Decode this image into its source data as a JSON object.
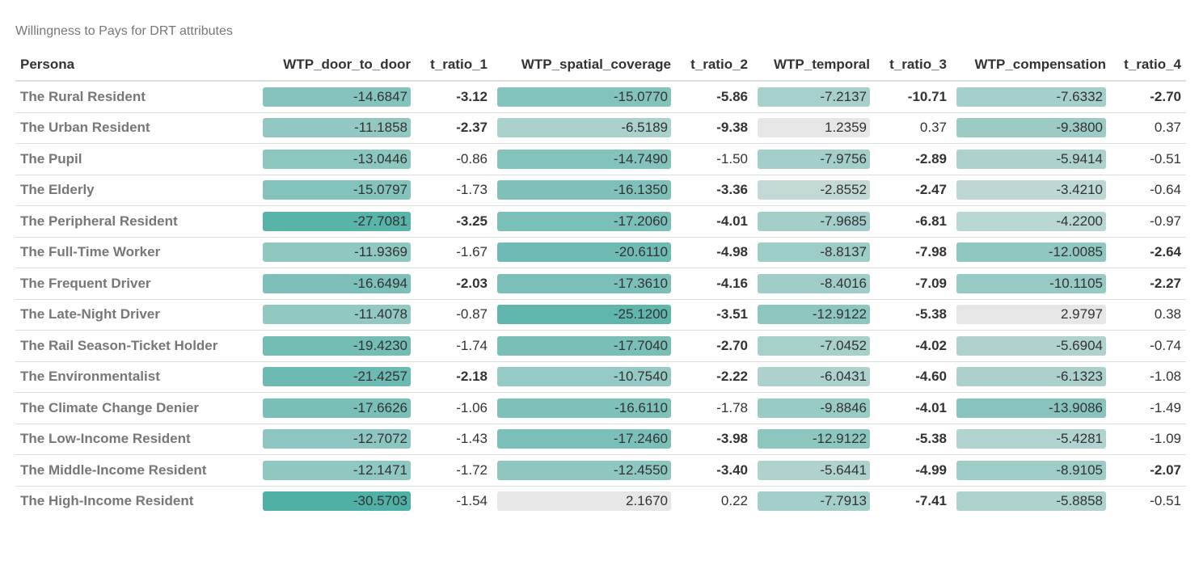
{
  "caption": "Willingness to Pays for DRT attributes",
  "columns": [
    "Persona",
    "WTP_door_to_door",
    "t_ratio_1",
    "WTP_spatial_coverage",
    "t_ratio_2",
    "WTP_temporal",
    "t_ratio_3",
    "WTP_compensation",
    "t_ratio_4"
  ],
  "colors": {
    "bar_min": "#e6e6e6",
    "bar_max": "#4fb0a5",
    "header_text": "#333333",
    "persona_text": "#777777",
    "caption_text": "#777777",
    "row_border": "#dddddd"
  },
  "rows": [
    {
      "persona": "The Rural Resident",
      "wtp_door": "-14.6847",
      "t1": "-3.12",
      "wtp_spatial": "-15.0770",
      "t2": "-5.86",
      "wtp_temporal": "-7.2137",
      "t3": "-10.71",
      "wtp_comp": "-7.6332",
      "t4": "-2.70"
    },
    {
      "persona": "The Urban Resident",
      "wtp_door": "-11.1858",
      "t1": "-2.37",
      "wtp_spatial": "-6.5189",
      "t2": "-9.38",
      "wtp_temporal": "1.2359",
      "t3": "0.37",
      "wtp_comp": "-9.3800",
      "t4": "0.37"
    },
    {
      "persona": "The Pupil",
      "wtp_door": "-13.0446",
      "t1": "-0.86",
      "wtp_spatial": "-14.7490",
      "t2": "-1.50",
      "wtp_temporal": "-7.9756",
      "t3": "-2.89",
      "wtp_comp": "-5.9414",
      "t4": "-0.51"
    },
    {
      "persona": "The Elderly",
      "wtp_door": "-15.0797",
      "t1": "-1.73",
      "wtp_spatial": "-16.1350",
      "t2": "-3.36",
      "wtp_temporal": "-2.8552",
      "t3": "-2.47",
      "wtp_comp": "-3.4210",
      "t4": "-0.64"
    },
    {
      "persona": "The Peripheral Resident",
      "wtp_door": "-27.7081",
      "t1": "-3.25",
      "wtp_spatial": "-17.2060",
      "t2": "-4.01",
      "wtp_temporal": "-7.9685",
      "t3": "-6.81",
      "wtp_comp": "-4.2200",
      "t4": "-0.97"
    },
    {
      "persona": "The Full-Time Worker",
      "wtp_door": "-11.9369",
      "t1": "-1.67",
      "wtp_spatial": "-20.6110",
      "t2": "-4.98",
      "wtp_temporal": "-8.8137",
      "t3": "-7.98",
      "wtp_comp": "-12.0085",
      "t4": "-2.64"
    },
    {
      "persona": "The Frequent Driver",
      "wtp_door": "-16.6494",
      "t1": "-2.03",
      "wtp_spatial": "-17.3610",
      "t2": "-4.16",
      "wtp_temporal": "-8.4016",
      "t3": "-7.09",
      "wtp_comp": "-10.1105",
      "t4": "-2.27"
    },
    {
      "persona": "The Late-Night Driver",
      "wtp_door": "-11.4078",
      "t1": "-0.87",
      "wtp_spatial": "-25.1200",
      "t2": "-3.51",
      "wtp_temporal": "-12.9122",
      "t3": "-5.38",
      "wtp_comp": "2.9797",
      "t4": "0.38"
    },
    {
      "persona": "The Rail Season-Ticket Holder",
      "wtp_door": "-19.4230",
      "t1": "-1.74",
      "wtp_spatial": "-17.7040",
      "t2": "-2.70",
      "wtp_temporal": "-7.0452",
      "t3": "-4.02",
      "wtp_comp": "-5.6904",
      "t4": "-0.74"
    },
    {
      "persona": "The Environmentalist",
      "wtp_door": "-21.4257",
      "t1": "-2.18",
      "wtp_spatial": "-10.7540",
      "t2": "-2.22",
      "wtp_temporal": "-6.0431",
      "t3": "-4.60",
      "wtp_comp": "-6.1323",
      "t4": "-1.08"
    },
    {
      "persona": "The Climate Change Denier",
      "wtp_door": "-17.6626",
      "t1": "-1.06",
      "wtp_spatial": "-16.6110",
      "t2": "-1.78",
      "wtp_temporal": "-9.8846",
      "t3": "-4.01",
      "wtp_comp": "-13.9086",
      "t4": "-1.49"
    },
    {
      "persona": "The Low-Income Resident",
      "wtp_door": "-12.7072",
      "t1": "-1.43",
      "wtp_spatial": "-17.2460",
      "t2": "-3.98",
      "wtp_temporal": "-12.9122",
      "t3": "-5.38",
      "wtp_comp": "-5.4281",
      "t4": "-1.09"
    },
    {
      "persona": "The Middle-Income Resident",
      "wtp_door": "-12.1471",
      "t1": "-1.72",
      "wtp_spatial": "-12.4550",
      "t2": "-3.40",
      "wtp_temporal": "-5.6441",
      "t3": "-4.99",
      "wtp_comp": "-8.9105",
      "t4": "-2.07"
    },
    {
      "persona": "The High-Income Resident",
      "wtp_door": "-30.5703",
      "t1": "-1.54",
      "wtp_spatial": "2.1670",
      "t2": "0.22",
      "wtp_temporal": "-7.7913",
      "t3": "-7.41",
      "wtp_comp": "-5.8858",
      "t4": "-0.51"
    }
  ]
}
